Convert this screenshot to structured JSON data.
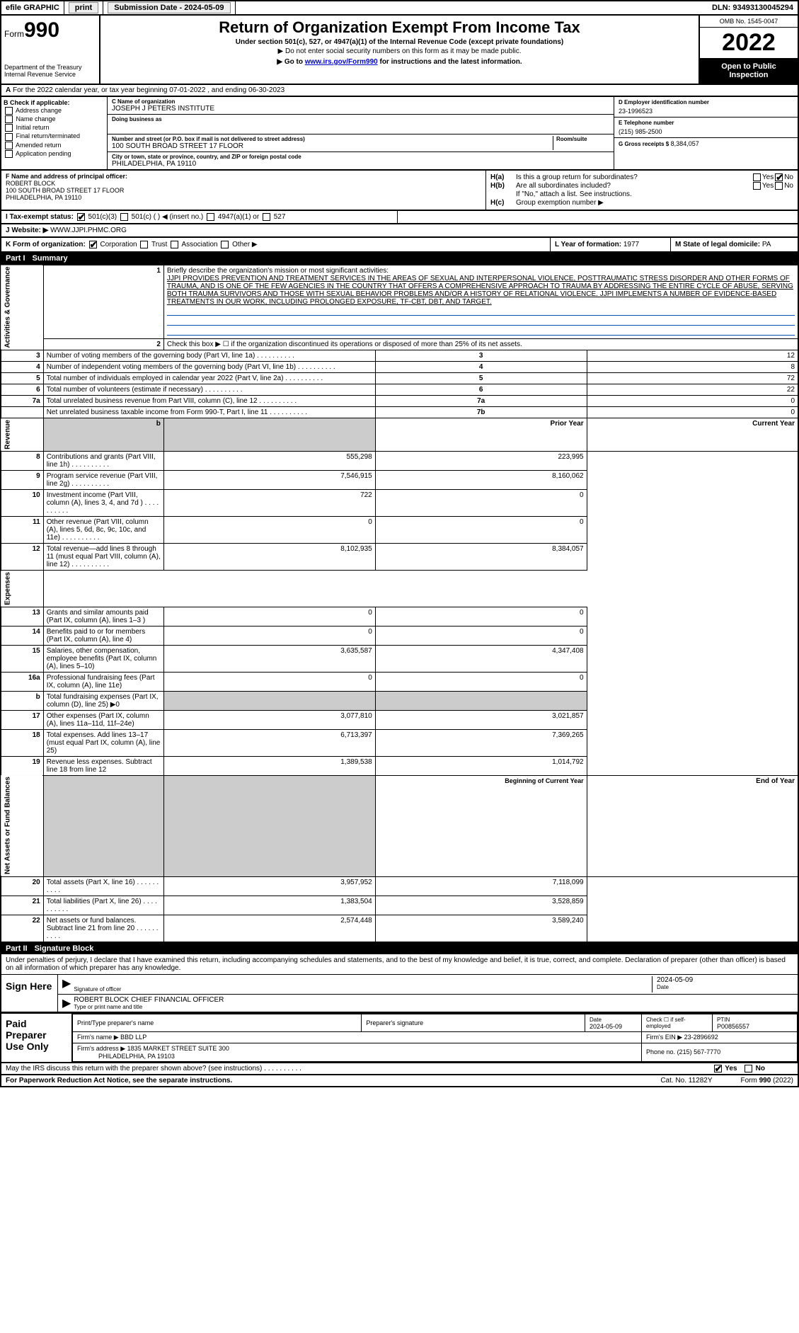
{
  "topbar": {
    "efile": "efile GRAPHIC",
    "print": "print",
    "submission": "Submission Date - 2024-05-09",
    "dln": "DLN: 93493130045294"
  },
  "header": {
    "form_label": "Form",
    "form_no": "990",
    "dept": "Department of the Treasury",
    "irs": "Internal Revenue Service",
    "title": "Return of Organization Exempt From Income Tax",
    "sub1": "Under section 501(c), 527, or 4947(a)(1) of the Internal Revenue Code (except private foundations)",
    "sub2": "▶ Do not enter social security numbers on this form as it may be made public.",
    "sub3_pre": "▶ Go to ",
    "sub3_link": "www.irs.gov/Form990",
    "sub3_post": " for instructions and the latest information.",
    "omb": "OMB No. 1545-0047",
    "year": "2022",
    "inspect": "Open to Public Inspection"
  },
  "rowA": {
    "label": "A",
    "text": "For the 2022 calendar year, or tax year beginning 07-01-2022   , and ending 06-30-2023"
  },
  "colB": {
    "label": "B Check if applicable:",
    "opts": [
      "Address change",
      "Name change",
      "Initial return",
      "Final return/terminated",
      "Amended return",
      "Application pending"
    ]
  },
  "org": {
    "name_lbl": "C Name of organization",
    "name": "JOSEPH J PETERS INSTITUTE",
    "dba_lbl": "Doing business as",
    "dba": "",
    "addr_lbl": "Number and street (or P.O. box if mail is not delivered to street address)",
    "room_lbl": "Room/suite",
    "addr": "100 SOUTH BROAD STREET 17 FLOOR",
    "city_lbl": "City or town, state or province, country, and ZIP or foreign postal code",
    "city": "PHILADELPHIA, PA  19110"
  },
  "colD": {
    "ein_lbl": "D Employer identification number",
    "ein": "23-1996523",
    "tel_lbl": "E Telephone number",
    "tel": "(215) 985-2500",
    "gross_lbl": "G Gross receipts $",
    "gross": "8,384,057"
  },
  "rowF": {
    "lbl": "F  Name and address of principal officer:",
    "name": "ROBERT BLOCK",
    "addr1": "100 SOUTH BROAD STREET 17 FLOOR",
    "addr2": "PHILADELPHIA, PA  19110"
  },
  "rowH": {
    "a": "Is this a group return for subordinates?",
    "b": "Are all subordinates included?",
    "note": "If \"No,\" attach a list. See instructions.",
    "c": "Group exemption number ▶"
  },
  "rowI": {
    "lbl": "I   Tax-exempt status:",
    "o1": "501(c)(3)",
    "o2": "501(c) (  )  ◀ (insert no.)",
    "o3": "4947(a)(1) or",
    "o4": "527"
  },
  "rowJ": {
    "lbl": "J   Website: ▶",
    "val": "WWW.JJPI.PHMC.ORG"
  },
  "rowK": {
    "lbl": "K Form of organization:",
    "o1": "Corporation",
    "o2": "Trust",
    "o3": "Association",
    "o4": "Other ▶",
    "L_lbl": "L Year of formation:",
    "L": "1977",
    "M_lbl": "M State of legal domicile:",
    "M": "PA"
  },
  "part1": {
    "label": "Part I",
    "title": "Summary"
  },
  "summary": {
    "s1_lbl": "Briefly describe the organization's mission or most significant activities:",
    "mission": "JJPI PROVIDES PREVENTION AND TREATMENT SERVICES IN THE AREAS OF SEXUAL AND INTERPERSONAL VIOLENCE, POSTTRAUMATIC STRESS DISORDER AND OTHER FORMS OF TRAUMA, AND IS ONE OF THE FEW AGENCIES IN THE COUNTRY THAT OFFERS A COMPREHENSIVE APPROACH TO TRAUMA BY ADDRESSING THE ENTIRE CYCLE OF ABUSE, SERVING BOTH TRAUMA SURVIVORS AND THOSE WITH SEXUAL BEHAVIOR PROBLEMS AND/OR A HISTORY OF RELATIONAL VIOLENCE. JJPI IMPLEMENTS A NUMBER OF EVIDENCE-BASED TREATMENTS IN OUR WORK, INCLUDING PROLONGED EXPOSURE, TF-CBT, DBT, AND TARGET.",
    "s2": "Check this box ▶ ☐ if the organization discontinued its operations or disposed of more than 25% of its net assets.",
    "lines": [
      {
        "n": "3",
        "t": "Number of voting members of the governing body (Part VI, line 1a)",
        "ln": "3",
        "v": "12"
      },
      {
        "n": "4",
        "t": "Number of independent voting members of the governing body (Part VI, line 1b)",
        "ln": "4",
        "v": "8"
      },
      {
        "n": "5",
        "t": "Total number of individuals employed in calendar year 2022 (Part V, line 2a)",
        "ln": "5",
        "v": "72"
      },
      {
        "n": "6",
        "t": "Total number of volunteers (estimate if necessary)",
        "ln": "6",
        "v": "22"
      },
      {
        "n": "7a",
        "t": "Total unrelated business revenue from Part VIII, column (C), line 12",
        "ln": "7a",
        "v": "0"
      },
      {
        "n": "",
        "t": "Net unrelated business taxable income from Form 990-T, Part I, line 11",
        "ln": "7b",
        "v": "0"
      }
    ],
    "col_hdr_prior": "Prior Year",
    "col_hdr_curr": "Current Year",
    "revenue": [
      {
        "n": "8",
        "t": "Contributions and grants (Part VIII, line 1h)",
        "p": "555,298",
        "c": "223,995"
      },
      {
        "n": "9",
        "t": "Program service revenue (Part VIII, line 2g)",
        "p": "7,546,915",
        "c": "8,160,062"
      },
      {
        "n": "10",
        "t": "Investment income (Part VIII, column (A), lines 3, 4, and 7d )",
        "p": "722",
        "c": "0"
      },
      {
        "n": "11",
        "t": "Other revenue (Part VIII, column (A), lines 5, 6d, 8c, 9c, 10c, and 11e)",
        "p": "0",
        "c": "0"
      },
      {
        "n": "12",
        "t": "Total revenue—add lines 8 through 11 (must equal Part VIII, column (A), line 12)",
        "p": "8,102,935",
        "c": "8,384,057"
      }
    ],
    "expenses": [
      {
        "n": "13",
        "t": "Grants and similar amounts paid (Part IX, column (A), lines 1–3 )",
        "p": "0",
        "c": "0"
      },
      {
        "n": "14",
        "t": "Benefits paid to or for members (Part IX, column (A), line 4)",
        "p": "0",
        "c": "0"
      },
      {
        "n": "15",
        "t": "Salaries, other compensation, employee benefits (Part IX, column (A), lines 5–10)",
        "p": "3,635,587",
        "c": "4,347,408"
      },
      {
        "n": "16a",
        "t": "Professional fundraising fees (Part IX, column (A), line 11e)",
        "p": "0",
        "c": "0"
      },
      {
        "n": "b",
        "t": "Total fundraising expenses (Part IX, column (D), line 25) ▶0",
        "p": "",
        "c": "",
        "shaded": true
      },
      {
        "n": "17",
        "t": "Other expenses (Part IX, column (A), lines 11a–11d, 11f–24e)",
        "p": "3,077,810",
        "c": "3,021,857"
      },
      {
        "n": "18",
        "t": "Total expenses. Add lines 13–17 (must equal Part IX, column (A), line 25)",
        "p": "6,713,397",
        "c": "7,369,265"
      },
      {
        "n": "19",
        "t": "Revenue less expenses. Subtract line 18 from line 12",
        "p": "1,389,538",
        "c": "1,014,792"
      }
    ],
    "bal_hdr_beg": "Beginning of Current Year",
    "bal_hdr_end": "End of Year",
    "balances": [
      {
        "n": "20",
        "t": "Total assets (Part X, line 16)",
        "p": "3,957,952",
        "c": "7,118,099"
      },
      {
        "n": "21",
        "t": "Total liabilities (Part X, line 26)",
        "p": "1,383,504",
        "c": "3,528,859"
      },
      {
        "n": "22",
        "t": "Net assets or fund balances. Subtract line 21 from line 20",
        "p": "2,574,448",
        "c": "3,589,240"
      }
    ],
    "vlabels": {
      "ag": "Activities & Governance",
      "rev": "Revenue",
      "exp": "Expenses",
      "bal": "Net Assets or Fund Balances"
    }
  },
  "part2": {
    "label": "Part II",
    "title": "Signature Block",
    "decl": "Under penalties of perjury, I declare that I have examined this return, including accompanying schedules and statements, and to the best of my knowledge and belief, it is true, correct, and complete. Declaration of preparer (other than officer) is based on all information of which preparer has any knowledge.",
    "sign_here": "Sign Here",
    "sig_officer": "Signature of officer",
    "sig_date": "2024-05-09",
    "date_lbl": "Date",
    "officer": "ROBERT BLOCK  CHIEF FINANCIAL OFFICER",
    "type_lbl": "Type or print name and title"
  },
  "paid": {
    "label": "Paid Preparer Use Only",
    "h1": "Print/Type preparer's name",
    "h2": "Preparer's signature",
    "h3": "Date",
    "h4": "Check ☐ if self-employed",
    "h5": "PTIN",
    "date": "2024-05-09",
    "ptin": "P00856557",
    "firm_lbl": "Firm's name    ▶",
    "firm": "BBD LLP",
    "ein_lbl": "Firm's EIN ▶",
    "ein": "23-2896692",
    "addr_lbl": "Firm's address ▶",
    "addr1": "1835 MARKET STREET SUITE 300",
    "addr2": "PHILADELPHIA, PA  19103",
    "phone_lbl": "Phone no.",
    "phone": "(215) 567-7770"
  },
  "footer": {
    "q": "May the IRS discuss this return with the preparer shown above? (see instructions)",
    "yes": "Yes",
    "no": "No",
    "pra": "For Paperwork Reduction Act Notice, see the separate instructions.",
    "cat": "Cat. No. 11282Y",
    "form": "Form 990 (2022)"
  }
}
